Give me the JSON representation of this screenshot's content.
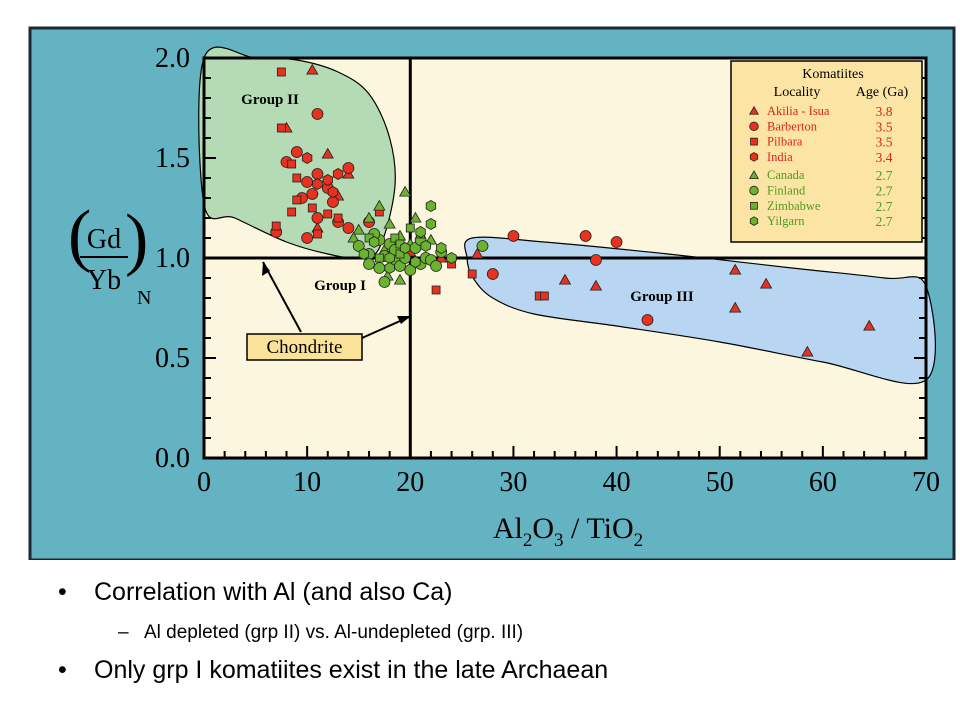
{
  "chart_data": {
    "type": "scatter",
    "xlabel": "Al2O3 / TiO2",
    "ylabel": "(Gd/Yb)N",
    "ylabel_parts": {
      "num": "Gd",
      "den": "Yb",
      "sub": "N"
    },
    "xlim": [
      0,
      70
    ],
    "ylim": [
      0.0,
      2.0
    ],
    "x_ticks": [
      "0",
      "10",
      "20",
      "30",
      "40",
      "50",
      "60",
      "70"
    ],
    "y_ticks": [
      "0.0",
      "0.5",
      "1.0",
      "1.5",
      "2.0"
    ],
    "reference_lines": {
      "x": 20,
      "y": 1.0,
      "label": "Chondrite"
    },
    "fields": [
      {
        "name": "Group II",
        "color": "#b5dbb5",
        "outline": [
          [
            0,
            1.27
          ],
          [
            3,
            1.2
          ],
          [
            8,
            1.08
          ],
          [
            12,
            1.02
          ],
          [
            15,
            1.0
          ],
          [
            17,
            1.05
          ],
          [
            18.5,
            1.35
          ],
          [
            18,
            1.6
          ],
          [
            16,
            1.82
          ],
          [
            13,
            1.93
          ],
          [
            9,
            1.99
          ],
          [
            5,
            2.0
          ],
          [
            0,
            2.0
          ]
        ]
      },
      {
        "name": "Group III",
        "color": "#b8d6f2",
        "outline": [
          [
            26,
            1.1
          ],
          [
            33,
            1.08
          ],
          [
            45,
            1.02
          ],
          [
            57,
            0.95
          ],
          [
            66,
            0.9
          ],
          [
            70,
            0.86
          ],
          [
            70,
            0.39
          ],
          [
            60,
            0.48
          ],
          [
            50,
            0.58
          ],
          [
            40,
            0.66
          ],
          [
            32,
            0.72
          ],
          [
            28,
            0.8
          ],
          [
            26.1,
            0.9
          ],
          [
            25.5,
            1.0
          ]
        ]
      }
    ],
    "field_labels": [
      "Group II",
      "Group I",
      "Group III"
    ],
    "legend": {
      "title": "Komatiites",
      "header_locality": "Locality",
      "header_age": "Age (Ga)",
      "entries": [
        {
          "name": "Akilia - Isua",
          "age": "3.8",
          "marker": "triangle",
          "color": "#e8311f",
          "text_color": "#d8261b"
        },
        {
          "name": "Barberton",
          "age": "3.5",
          "marker": "circle",
          "color": "#e8311f",
          "text_color": "#d8261b"
        },
        {
          "name": "Pilbara",
          "age": "3.5",
          "marker": "square",
          "color": "#e8311f",
          "text_color": "#d8261b"
        },
        {
          "name": "India",
          "age": "3.4",
          "marker": "hexagon",
          "color": "#e8311f",
          "text_color": "#d8261b"
        },
        {
          "name": "Canada",
          "age": "2.7",
          "marker": "triangle",
          "color": "#6ab32e",
          "text_color": "#4f9a22"
        },
        {
          "name": "Finland",
          "age": "2.7",
          "marker": "circle",
          "color": "#6ab32e",
          "text_color": "#4f9a22"
        },
        {
          "name": "Zimbabwe",
          "age": "2.7",
          "marker": "square",
          "color": "#6ab32e",
          "text_color": "#4f9a22"
        },
        {
          "name": "Yilgarn",
          "age": "2.7",
          "marker": "hexagon",
          "color": "#6ab32e",
          "text_color": "#4f9a22"
        }
      ]
    },
    "series": [
      {
        "name": "Akilia - Isua",
        "marker": "triangle",
        "color": "#e8311f",
        "points": [
          [
            10.5,
            1.94
          ],
          [
            8,
            1.65
          ],
          [
            12,
            1.52
          ],
          [
            13,
            1.31
          ],
          [
            14,
            1.42
          ],
          [
            11,
            1.15
          ],
          [
            20,
            1.03
          ],
          [
            23,
            1.0
          ],
          [
            26.5,
            1.02
          ],
          [
            35,
            0.89
          ],
          [
            38,
            0.86
          ],
          [
            51.5,
            0.94
          ],
          [
            51.5,
            0.75
          ],
          [
            54.5,
            0.87
          ],
          [
            58.5,
            0.53
          ],
          [
            64.5,
            0.66
          ]
        ]
      },
      {
        "name": "Barberton",
        "marker": "circle",
        "color": "#e8311f",
        "points": [
          [
            11,
            1.72
          ],
          [
            8,
            1.48
          ],
          [
            9,
            1.53
          ],
          [
            10,
            1.38
          ],
          [
            11,
            1.42
          ],
          [
            12,
            1.35
          ],
          [
            10.5,
            1.32
          ],
          [
            9.5,
            1.3
          ],
          [
            12.5,
            1.28
          ],
          [
            11,
            1.2
          ],
          [
            13,
            1.18
          ],
          [
            14,
            1.45
          ],
          [
            7,
            1.13
          ],
          [
            10,
            1.1
          ],
          [
            14,
            1.15
          ],
          [
            16,
            1.18
          ],
          [
            30,
            1.11
          ],
          [
            37,
            1.11
          ],
          [
            40,
            1.08
          ],
          [
            38,
            0.99
          ],
          [
            28,
            0.92
          ],
          [
            43,
            0.69
          ]
        ]
      },
      {
        "name": "Pilbara",
        "marker": "square",
        "color": "#e8311f",
        "points": [
          [
            7.5,
            1.93
          ],
          [
            7.5,
            1.65
          ],
          [
            8.5,
            1.47
          ],
          [
            9,
            1.4
          ],
          [
            10.5,
            1.25
          ],
          [
            9,
            1.29
          ],
          [
            8.5,
            1.23
          ],
          [
            12,
            1.22
          ],
          [
            11,
            1.12
          ],
          [
            7,
            1.16
          ],
          [
            13,
            1.2
          ],
          [
            17,
            1.23
          ],
          [
            22.5,
            0.84
          ],
          [
            26,
            0.92
          ],
          [
            32.5,
            0.81
          ],
          [
            33,
            0.81
          ],
          [
            24,
            0.97
          ]
        ]
      },
      {
        "name": "India",
        "marker": "hexagon",
        "color": "#e8311f",
        "points": [
          [
            12,
            1.39
          ],
          [
            11,
            1.37
          ],
          [
            12.5,
            1.33
          ],
          [
            10,
            1.5
          ],
          [
            13,
            1.42
          ]
        ]
      },
      {
        "name": "Canada",
        "marker": "triangle",
        "color": "#6ab32e",
        "points": [
          [
            19.5,
            1.33
          ],
          [
            17,
            1.26
          ],
          [
            16,
            1.2
          ],
          [
            15,
            1.14
          ],
          [
            18,
            1.17
          ],
          [
            20.5,
            1.2
          ],
          [
            19,
            1.11
          ],
          [
            22,
            1.09
          ],
          [
            14.5,
            1.1
          ],
          [
            20,
            1.07
          ],
          [
            17.8,
            0.91
          ],
          [
            19,
            0.89
          ],
          [
            17.5,
            1.04
          ]
        ]
      },
      {
        "name": "Finland",
        "marker": "circle",
        "color": "#6ab32e",
        "points": [
          [
            15,
            1.06
          ],
          [
            16,
            1.02
          ],
          [
            16,
            0.97
          ],
          [
            17,
            0.95
          ],
          [
            17.5,
            1.01
          ],
          [
            18,
            1.07
          ],
          [
            18.5,
            0.99
          ],
          [
            19,
            0.96
          ],
          [
            19.5,
            1.0
          ],
          [
            20,
            0.94
          ],
          [
            20.5,
            1.05
          ],
          [
            21,
            0.97
          ],
          [
            21.5,
            1.0
          ],
          [
            22,
            0.99
          ],
          [
            23,
            1.03
          ],
          [
            22.5,
            0.96
          ],
          [
            17,
            1.09
          ],
          [
            16.5,
            1.12
          ],
          [
            18.5,
            1.04
          ],
          [
            21,
            1.09
          ],
          [
            17.5,
            0.88
          ],
          [
            27,
            1.06
          ]
        ]
      },
      {
        "name": "Zimbabwe",
        "marker": "square",
        "color": "#6ab32e",
        "points": [
          [
            18.5,
            1.1
          ],
          [
            20,
            1.15
          ],
          [
            21,
            1.12
          ],
          [
            19,
            1.02
          ],
          [
            16,
            1.1
          ],
          [
            19,
            1.07
          ],
          [
            17,
            1.0
          ]
        ]
      },
      {
        "name": "Yilgarn",
        "marker": "hexagon",
        "color": "#6ab32e",
        "points": [
          [
            22,
            1.26
          ],
          [
            22,
            1.17
          ],
          [
            21,
            1.13
          ],
          [
            20.5,
            0.98
          ],
          [
            18,
            1.0
          ],
          [
            23,
            1.05
          ],
          [
            16.5,
            1.08
          ],
          [
            19.5,
            1.05
          ],
          [
            18,
            0.95
          ],
          [
            15.5,
            1.02
          ],
          [
            21.5,
            1.06
          ],
          [
            24,
            1.0
          ]
        ]
      }
    ]
  },
  "bullets": {
    "b1": "Correlation with Al (and also Ca)",
    "b2": "Al depleted (grp II) vs. Al-undepleted (grp. III)",
    "b3": "Only grp I komatiites exist in the late Archaean",
    "bullet_glyph": "•",
    "dash_glyph": "–"
  }
}
